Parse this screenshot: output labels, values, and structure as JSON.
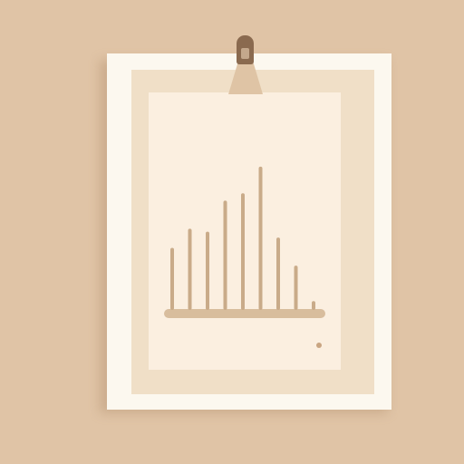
{
  "scene": {
    "subject": "framed-chart-poster",
    "icon": "bar-chart-icon"
  },
  "colors": {
    "background": "#e0c4a6",
    "frame": "#fcf8ef",
    "mat": "#f0dfc7",
    "paper": "#fbefe0",
    "bars": "#c9ab89",
    "baseline": "#d8bd9d",
    "clip": "#8a6a4f",
    "dot": "#c9a582"
  },
  "chart_data": {
    "type": "bar",
    "title": "",
    "xlabel": "",
    "ylabel": "",
    "values": [
      0.42,
      0.55,
      0.53,
      0.74,
      0.79,
      0.97,
      0.49,
      0.3,
      0.06
    ],
    "grid": false
  }
}
